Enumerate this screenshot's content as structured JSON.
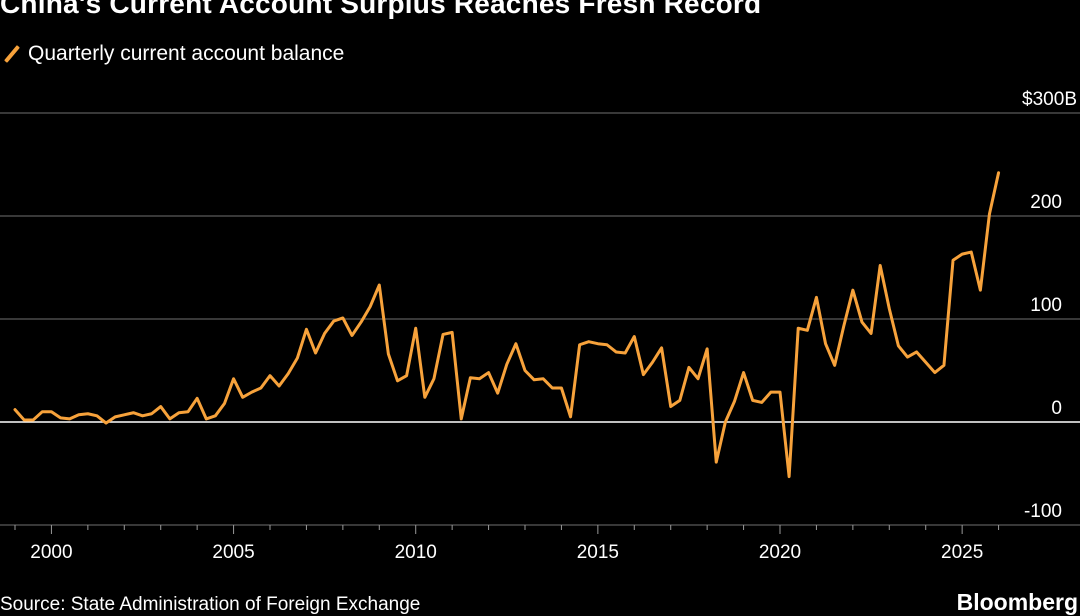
{
  "title": "China's Current Account Surplus Reaches Fresh Record",
  "legend_label": "Quarterly current account balance",
  "source": "Source: State Administration of Foreign Exchange",
  "brand": "Bloomberg",
  "colors": {
    "line": "#f7a23b",
    "grid": "#5a5a5a",
    "zero": "#ffffff",
    "background": "#000000"
  },
  "chart_data": {
    "type": "line",
    "title": "China's Current Account Surplus Reaches Fresh Record",
    "xlabel": "",
    "ylabel": "",
    "unit": "USD billions",
    "xlim": [
      1998.75,
      2026.4
    ],
    "ylim": [
      -100,
      300
    ],
    "x_ticks": [
      2000,
      2005,
      2010,
      2015,
      2020,
      2025
    ],
    "x_tick_labels": [
      "2000",
      "2005",
      "2010",
      "2015",
      "2020",
      "2025"
    ],
    "y_ticks": [
      -100,
      0,
      100,
      200,
      300
    ],
    "y_tick_labels": [
      "-100",
      "0",
      "100",
      "200",
      "$300B"
    ],
    "grid": true,
    "legend": "top-left",
    "series": [
      {
        "name": "Quarterly current account balance",
        "x_start": 1999.0,
        "step": 0.25,
        "values": [
          12,
          2,
          2,
          10,
          10,
          4,
          3,
          7,
          8,
          6,
          -1,
          5,
          7,
          9,
          6,
          8,
          15,
          3,
          9,
          10,
          23,
          3,
          6,
          18,
          42,
          24,
          29,
          33,
          45,
          35,
          47,
          62,
          90,
          67,
          86,
          98,
          101,
          84,
          97,
          112,
          133,
          66,
          40,
          45,
          91,
          24,
          42,
          85,
          87,
          3,
          43,
          42,
          48,
          28,
          56,
          76,
          50,
          41,
          42,
          33,
          33,
          5,
          75,
          78,
          76,
          75,
          68,
          67,
          83,
          46,
          58,
          72,
          15,
          21,
          53,
          42,
          71,
          -39,
          0,
          20,
          48,
          21,
          19,
          29,
          29,
          -53,
          91,
          89,
          121,
          76,
          55,
          93,
          128,
          97,
          86,
          152,
          110,
          74,
          63,
          68,
          58,
          48,
          55,
          157,
          163,
          165,
          128,
          202,
          242
        ]
      }
    ]
  }
}
